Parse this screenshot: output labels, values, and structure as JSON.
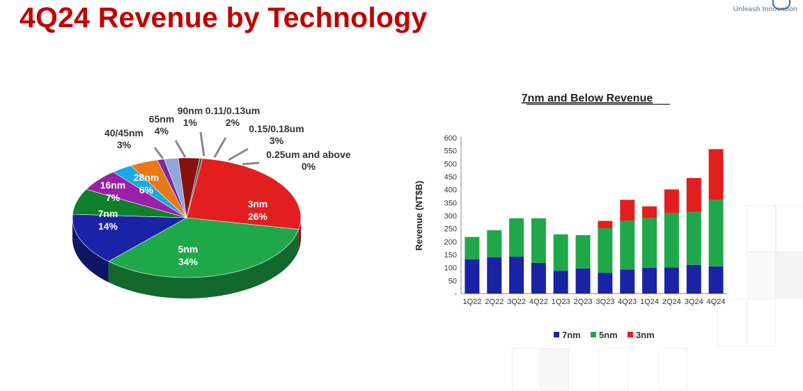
{
  "slide": {
    "title": "4Q24 Revenue by Technology",
    "brand": "Unleash Innovation"
  },
  "colors": {
    "title": "#c00000",
    "3nm": "#e31e1e",
    "5nm": "#1fa84a",
    "7nm": "#1a23a6",
    "16nm": "#0f7f2a",
    "28nm": "#9b1fa8",
    "40_45nm": "#1aa7e6",
    "65nm": "#e87818",
    "90nm": "#7a2aa0",
    "0.11_0.13um": "#8fa6d8",
    "0.15_0.18um": "#8a1010",
    "0.25um": "#555555"
  },
  "chart_data": [
    {
      "type": "pie",
      "title": "",
      "slices": [
        {
          "label": "3nm",
          "value": 26
        },
        {
          "label": "5nm",
          "value": 34
        },
        {
          "label": "7nm",
          "value": 14
        },
        {
          "label": "16nm",
          "value": 7
        },
        {
          "label": "28nm",
          "value": 6
        },
        {
          "label": "40/45nm",
          "value": 3
        },
        {
          "label": "65nm",
          "value": 4
        },
        {
          "label": "90nm",
          "value": 1
        },
        {
          "label": "0.11/0.13um",
          "value": 2
        },
        {
          "label": "0.15/0.18um",
          "value": 3
        },
        {
          "label": "0.25um and above",
          "value": 0
        }
      ],
      "value_suffix": "%"
    },
    {
      "type": "bar",
      "stacked": true,
      "title": "7nm and Below Revenue",
      "ylabel": "Revenue (NT$B)",
      "xlabel": "",
      "ylim": [
        0,
        600
      ],
      "yticks": [
        "-",
        "50",
        "100",
        "150",
        "200",
        "250",
        "300",
        "350",
        "400",
        "450",
        "500",
        "550",
        "600"
      ],
      "categories": [
        "1Q22",
        "2Q22",
        "3Q22",
        "4Q22",
        "1Q23",
        "2Q23",
        "3Q23",
        "4Q23",
        "1Q24",
        "2Q24",
        "3Q24",
        "4Q24"
      ],
      "series": [
        {
          "name": "7nm",
          "values": [
            132,
            140,
            142,
            118,
            88,
            97,
            80,
            93,
            100,
            101,
            110,
            105
          ]
        },
        {
          "name": "5nm",
          "values": [
            86,
            104,
            148,
            172,
            140,
            128,
            173,
            188,
            191,
            210,
            205,
            256
          ]
        },
        {
          "name": "3nm",
          "values": [
            0,
            0,
            0,
            0,
            0,
            0,
            27,
            80,
            45,
            90,
            130,
            195
          ]
        }
      ],
      "legend_position": "bottom",
      "grid": false
    }
  ]
}
